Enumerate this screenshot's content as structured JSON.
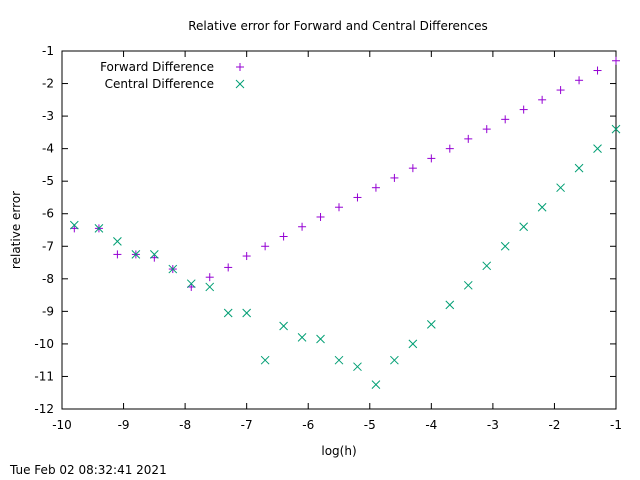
{
  "chart_data": {
    "type": "scatter",
    "title": "Relative error for Forward and Central Differences",
    "xlabel": "log(h)",
    "ylabel": "relative error",
    "xlim": [
      -10,
      -1
    ],
    "ylim": [
      -12,
      -1
    ],
    "xticks": [
      -10,
      -9,
      -8,
      -7,
      -6,
      -5,
      -4,
      -3,
      -2,
      -1
    ],
    "yticks": [
      -12,
      -11,
      -10,
      -9,
      -8,
      -7,
      -6,
      -5,
      -4,
      -3,
      -2,
      -1
    ],
    "grid": false,
    "legend_position": "top-left",
    "series": [
      {
        "name": "Forward Difference",
        "marker": "plus",
        "color": "#9400d3",
        "x": [
          -9.8,
          -9.4,
          -9.1,
          -8.8,
          -8.5,
          -8.2,
          -7.9,
          -7.6,
          -7.3,
          -7.0,
          -6.7,
          -6.4,
          -6.1,
          -5.8,
          -5.5,
          -5.2,
          -4.9,
          -4.6,
          -4.3,
          -4.0,
          -3.7,
          -3.4,
          -3.1,
          -2.8,
          -2.5,
          -2.2,
          -1.9,
          -1.6,
          -1.3,
          -1.0
        ],
        "y": [
          -6.45,
          -6.45,
          -7.25,
          -7.25,
          -7.35,
          -7.7,
          -8.25,
          -7.95,
          -7.65,
          -7.3,
          -7.0,
          -6.7,
          -6.4,
          -6.1,
          -5.8,
          -5.5,
          -5.2,
          -4.9,
          -4.6,
          -4.3,
          -4.0,
          -3.7,
          -3.4,
          -3.1,
          -2.8,
          -2.5,
          -2.2,
          -1.9,
          -1.6,
          -1.3
        ]
      },
      {
        "name": "Central Difference",
        "marker": "cross",
        "color": "#009e73",
        "x": [
          -9.8,
          -9.4,
          -9.1,
          -8.8,
          -8.5,
          -8.2,
          -7.9,
          -7.6,
          -7.3,
          -7.0,
          -6.7,
          -6.4,
          -6.1,
          -5.8,
          -5.5,
          -5.2,
          -4.9,
          -4.6,
          -4.3,
          -4.0,
          -3.7,
          -3.4,
          -3.1,
          -2.8,
          -2.5,
          -2.2,
          -1.9,
          -1.6,
          -1.3,
          -1.0
        ],
        "y": [
          -6.35,
          -6.45,
          -6.85,
          -7.25,
          -7.25,
          -7.7,
          -8.15,
          -8.25,
          -9.05,
          -9.05,
          -10.5,
          -9.45,
          -9.8,
          -9.85,
          -10.5,
          -10.7,
          -11.25,
          -10.5,
          -10.0,
          -9.4,
          -8.8,
          -8.2,
          -7.6,
          -7.0,
          -6.4,
          -5.8,
          -5.2,
          -4.6,
          -4.0,
          -3.4
        ]
      }
    ]
  },
  "timestamp": "Tue Feb 02 08:32:41 2021"
}
